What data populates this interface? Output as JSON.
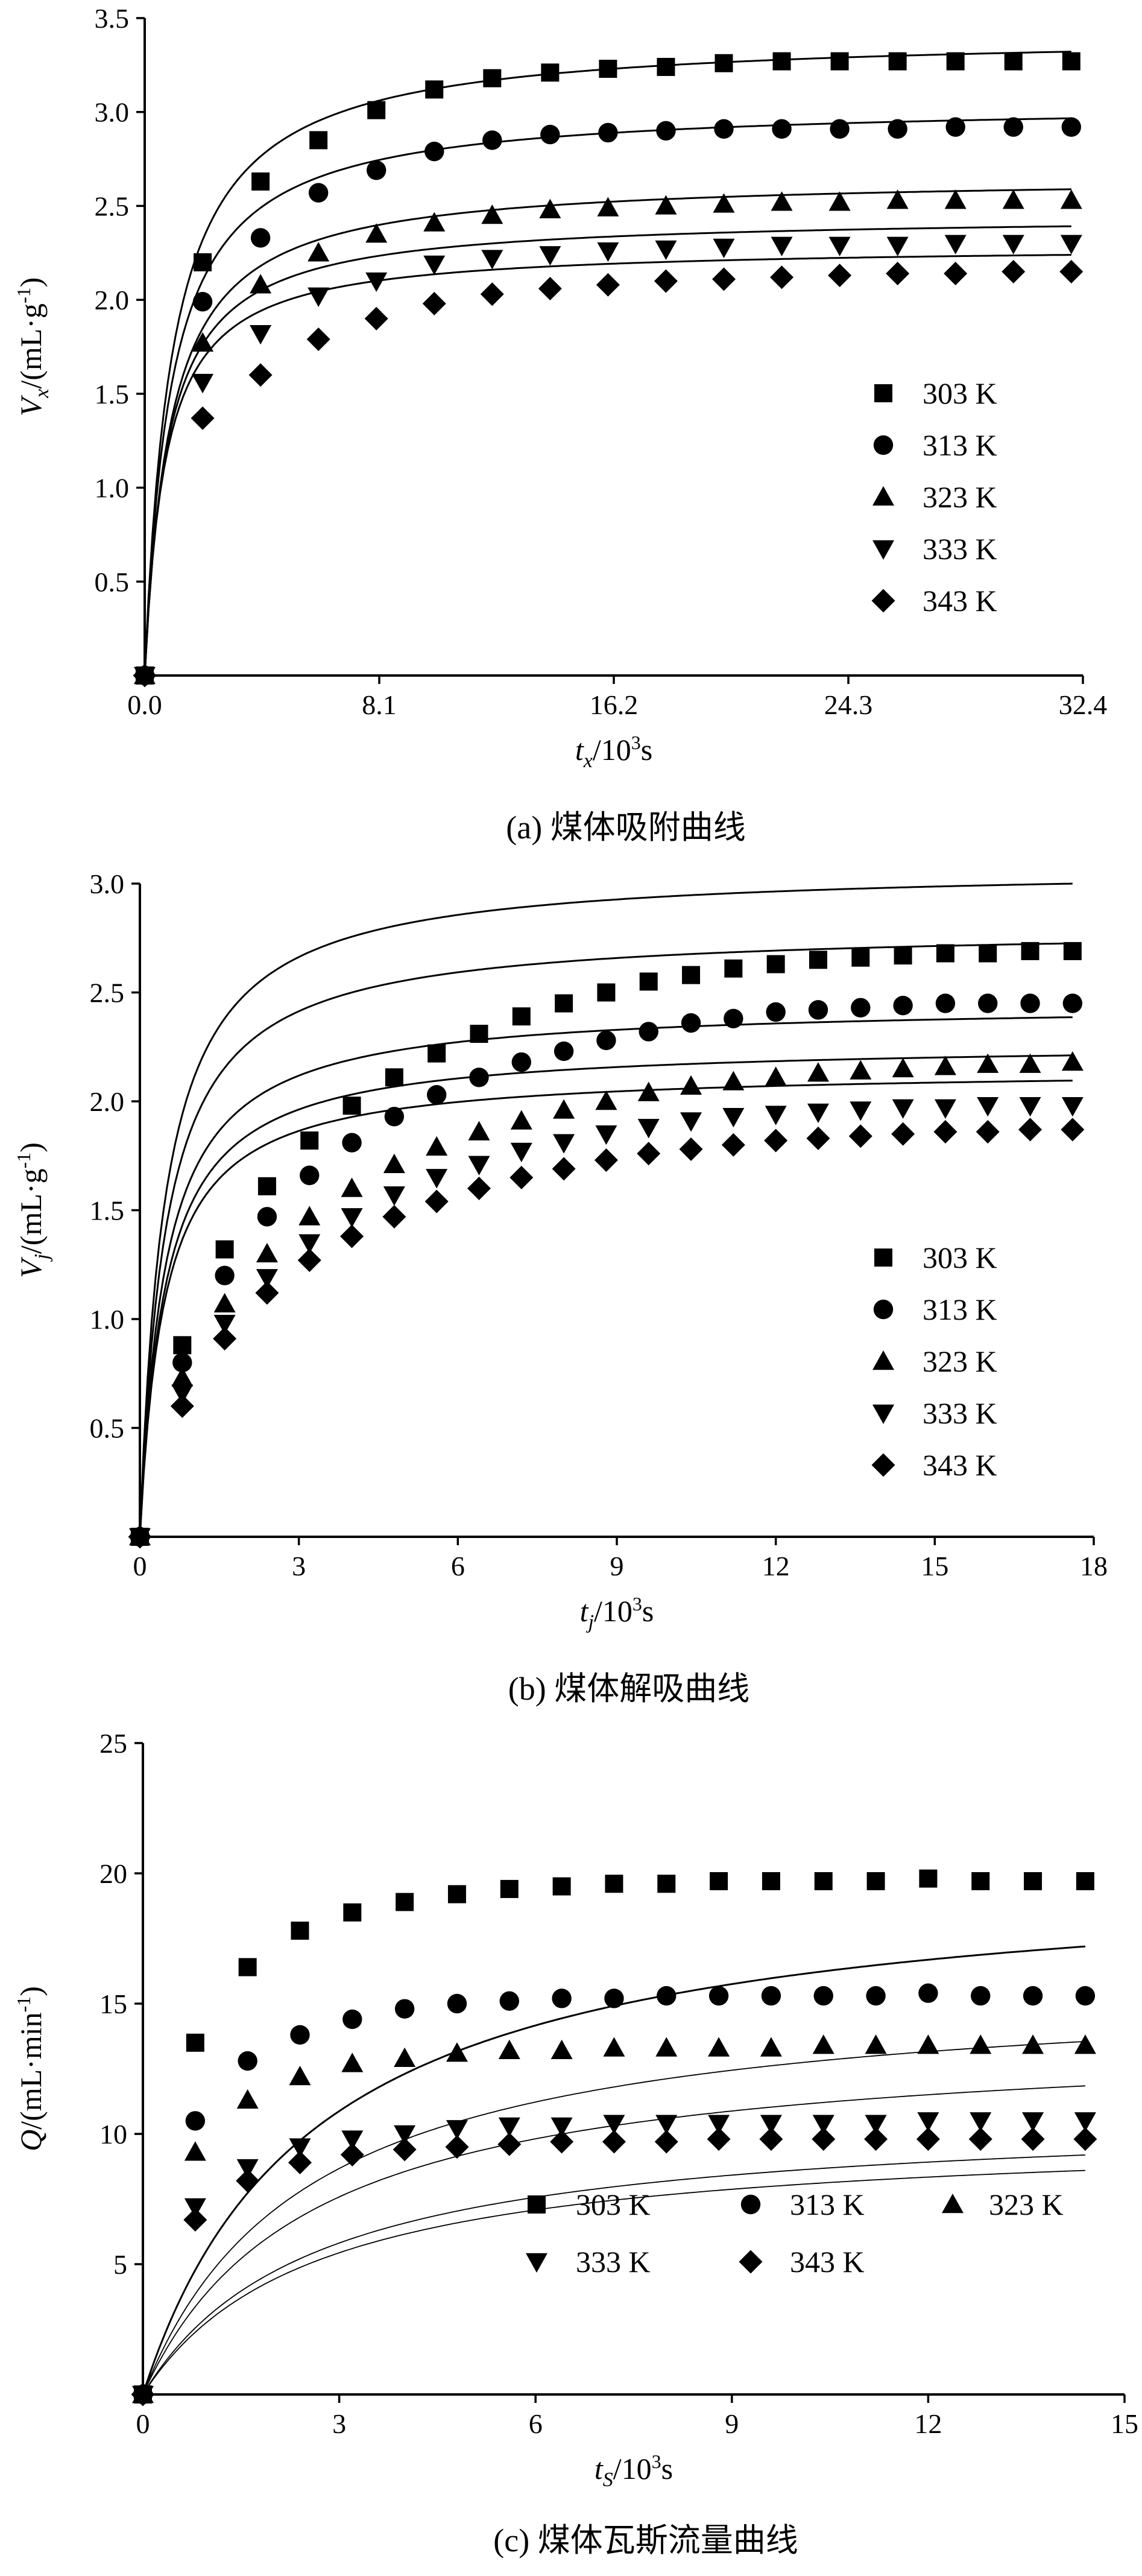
{
  "chart_data": [
    {
      "type": "scatter",
      "caption": "(a) 煤体吸附曲线",
      "ylabel": {
        "main": "V",
        "sub": "x",
        "rest": "/(mL·g",
        "sup": "-1",
        "end": ")"
      },
      "xlabel": {
        "main": "t",
        "sub": "x",
        "rest": "/10",
        "sup": "3",
        "end": "s"
      },
      "x_ticks": [
        "0.0",
        "8.1",
        "16.2",
        "24.3",
        "32.4"
      ],
      "y_ticks": [
        "0.5",
        "1.0",
        "1.5",
        "2.0",
        "2.5",
        "3.0",
        "3.5"
      ],
      "xlim": [
        0,
        32.4
      ],
      "ylim": [
        0,
        3.5
      ],
      "legend": "right-middle",
      "x": [
        0,
        2,
        4,
        6,
        8,
        10,
        12,
        14,
        16,
        18,
        20,
        22,
        24,
        26,
        28,
        30,
        32
      ],
      "series": [
        {
          "name": "303 K",
          "marker": "square",
          "values": [
            0,
            2.2,
            2.63,
            2.85,
            3.01,
            3.12,
            3.18,
            3.21,
            3.23,
            3.24,
            3.26,
            3.27,
            3.27,
            3.27,
            3.27,
            3.27,
            3.27
          ],
          "fit": {
            "vmax": 3.42,
            "b": 0.95
          }
        },
        {
          "name": "313 K",
          "marker": "circle",
          "values": [
            0,
            1.99,
            2.33,
            2.57,
            2.69,
            2.79,
            2.85,
            2.88,
            2.89,
            2.9,
            2.91,
            2.91,
            2.91,
            2.91,
            2.92,
            2.92,
            2.92
          ],
          "fit": {
            "vmax": 3.05,
            "b": 0.9
          }
        },
        {
          "name": "323 K",
          "marker": "triangle-up",
          "values": [
            0,
            1.77,
            2.08,
            2.25,
            2.35,
            2.41,
            2.45,
            2.48,
            2.49,
            2.5,
            2.51,
            2.52,
            2.52,
            2.53,
            2.53,
            2.53,
            2.53
          ],
          "fit": {
            "vmax": 2.66,
            "b": 0.88
          }
        },
        {
          "name": "333 K",
          "marker": "triangle-down",
          "values": [
            0,
            1.56,
            1.82,
            2.02,
            2.1,
            2.19,
            2.22,
            2.24,
            2.26,
            2.27,
            2.28,
            2.29,
            2.29,
            2.29,
            2.3,
            2.3,
            2.3
          ],
          "fit": {
            "vmax": 2.45,
            "b": 0.78
          }
        },
        {
          "name": "343 K",
          "marker": "diamond",
          "values": [
            0,
            1.37,
            1.6,
            1.79,
            1.9,
            1.98,
            2.03,
            2.06,
            2.08,
            2.1,
            2.11,
            2.12,
            2.13,
            2.14,
            2.14,
            2.15,
            2.15
          ],
          "fit": {
            "vmax": 2.29,
            "b": 0.72
          }
        }
      ]
    },
    {
      "type": "scatter",
      "caption": "(b)  煤体解吸曲线",
      "ylabel": {
        "main": "V",
        "sub": "j",
        "rest": "/(mL·g",
        "sup": "-1",
        "end": ")"
      },
      "xlabel": {
        "main": "t",
        "sub": "j",
        "rest": "/10",
        "sup": "3",
        "end": "s"
      },
      "x_ticks": [
        "0",
        "3",
        "6",
        "9",
        "12",
        "15",
        "18"
      ],
      "y_ticks": [
        "0.5",
        "1.0",
        "1.5",
        "2.0",
        "2.5",
        "3.0"
      ],
      "xlim": [
        0,
        18
      ],
      "ylim": [
        0,
        3.0
      ],
      "legend": "right-middle",
      "x": [
        0,
        0.8,
        1.6,
        2.4,
        3.2,
        4.0,
        4.8,
        5.6,
        6.4,
        7.2,
        8.0,
        8.8,
        9.6,
        10.4,
        11.2,
        12.0,
        12.8,
        13.6,
        14.4,
        15.2,
        16.0,
        16.8,
        17.6
      ],
      "series": [
        {
          "name": "303 K",
          "marker": "square",
          "values": [
            0,
            0.88,
            1.32,
            1.61,
            1.82,
            1.98,
            2.11,
            2.22,
            2.31,
            2.39,
            2.45,
            2.5,
            2.55,
            2.58,
            2.61,
            2.63,
            2.65,
            2.66,
            2.67,
            2.68,
            2.68,
            2.69,
            2.69
          ],
          "fit": {
            "vmax": 3.08,
            "b": 0.47
          }
        },
        {
          "name": "313 K",
          "marker": "circle",
          "values": [
            0,
            0.8,
            1.2,
            1.47,
            1.66,
            1.81,
            1.93,
            2.03,
            2.11,
            2.18,
            2.23,
            2.28,
            2.32,
            2.36,
            2.38,
            2.41,
            2.42,
            2.43,
            2.44,
            2.45,
            2.45,
            2.45,
            2.45
          ],
          "fit": {
            "vmax": 2.8,
            "b": 0.48
          }
        },
        {
          "name": "323 K",
          "marker": "triangle-up",
          "values": [
            0,
            0.73,
            1.07,
            1.3,
            1.47,
            1.6,
            1.71,
            1.79,
            1.86,
            1.91,
            1.96,
            2.0,
            2.04,
            2.07,
            2.09,
            2.11,
            2.13,
            2.14,
            2.15,
            2.16,
            2.17,
            2.17,
            2.18
          ],
          "fit": {
            "vmax": 2.45,
            "b": 0.47
          }
        },
        {
          "name": "333 K",
          "marker": "triangle-down",
          "values": [
            0,
            0.66,
            0.98,
            1.19,
            1.35,
            1.47,
            1.57,
            1.65,
            1.71,
            1.77,
            1.81,
            1.85,
            1.88,
            1.91,
            1.93,
            1.94,
            1.95,
            1.96,
            1.97,
            1.97,
            1.98,
            1.98,
            1.98
          ],
          "fit": {
            "vmax": 2.27,
            "b": 0.47
          }
        },
        {
          "name": "343 K",
          "marker": "diamond",
          "values": [
            0,
            0.6,
            0.91,
            1.12,
            1.27,
            1.38,
            1.47,
            1.54,
            1.6,
            1.65,
            1.69,
            1.73,
            1.76,
            1.78,
            1.8,
            1.82,
            1.83,
            1.84,
            1.85,
            1.86,
            1.86,
            1.87,
            1.87
          ],
          "fit": {
            "vmax": 2.15,
            "b": 0.46
          }
        }
      ]
    },
    {
      "type": "scatter",
      "caption": "(c)  煤体瓦斯流量曲线",
      "ylabel": {
        "main": "Q",
        "sub": "",
        "rest": "/(mL·min",
        "sup": "-1",
        "end": ")"
      },
      "xlabel": {
        "main": "t",
        "sub": "S",
        "rest": "/10",
        "sup": "3",
        "end": "s"
      },
      "x_ticks": [
        "0",
        "3",
        "6",
        "9",
        "12",
        "15"
      ],
      "y_ticks": [
        "5",
        "10",
        "15",
        "20",
        "25"
      ],
      "xlim": [
        0,
        15
      ],
      "ylim": [
        0,
        25
      ],
      "legend": "bottom-right",
      "x": [
        0,
        0.8,
        1.6,
        2.4,
        3.2,
        4.0,
        4.8,
        5.6,
        6.4,
        7.2,
        8.0,
        8.8,
        9.6,
        10.4,
        11.2,
        12.0,
        12.8,
        13.6,
        14.4
      ],
      "series": [
        {
          "name": "303 K",
          "marker": "square",
          "values": [
            0,
            13.5,
            16.4,
            17.8,
            18.5,
            18.9,
            19.2,
            19.4,
            19.5,
            19.6,
            19.6,
            19.7,
            19.7,
            19.7,
            19.7,
            19.8,
            19.7,
            19.7,
            19.7
          ],
          "fit": {
            "vmax": 20.3,
            "b": 2.6
          }
        },
        {
          "name": "313 K",
          "marker": "circle",
          "values": [
            0,
            10.5,
            12.8,
            13.8,
            14.4,
            14.8,
            15.0,
            15.1,
            15.2,
            15.2,
            15.3,
            15.3,
            15.3,
            15.3,
            15.3,
            15.4,
            15.3,
            15.3,
            15.3
          ],
          "fit": {
            "vmax": 15.9,
            "b": 2.5
          }
        },
        {
          "name": "323 K",
          "marker": "triangle-up",
          "values": [
            0,
            9.3,
            11.3,
            12.2,
            12.7,
            12.9,
            13.1,
            13.2,
            13.2,
            13.3,
            13.3,
            13.3,
            13.3,
            13.4,
            13.4,
            13.4,
            13.4,
            13.4,
            13.4
          ],
          "fit": {
            "vmax": 13.9,
            "b": 2.5
          }
        },
        {
          "name": "333 K",
          "marker": "triangle-down",
          "values": [
            0,
            7.2,
            8.7,
            9.5,
            9.8,
            10.0,
            10.2,
            10.3,
            10.3,
            10.4,
            10.4,
            10.4,
            10.4,
            10.4,
            10.4,
            10.5,
            10.5,
            10.5,
            10.5
          ],
          "fit": {
            "vmax": 10.85,
            "b": 2.6
          }
        },
        {
          "name": "343 K",
          "marker": "diamond",
          "values": [
            0,
            6.7,
            8.2,
            8.9,
            9.2,
            9.4,
            9.5,
            9.6,
            9.7,
            9.7,
            9.7,
            9.8,
            9.8,
            9.8,
            9.8,
            9.8,
            9.8,
            9.8,
            9.8
          ],
          "fit": {
            "vmax": 10.15,
            "b": 2.6
          }
        }
      ]
    }
  ]
}
